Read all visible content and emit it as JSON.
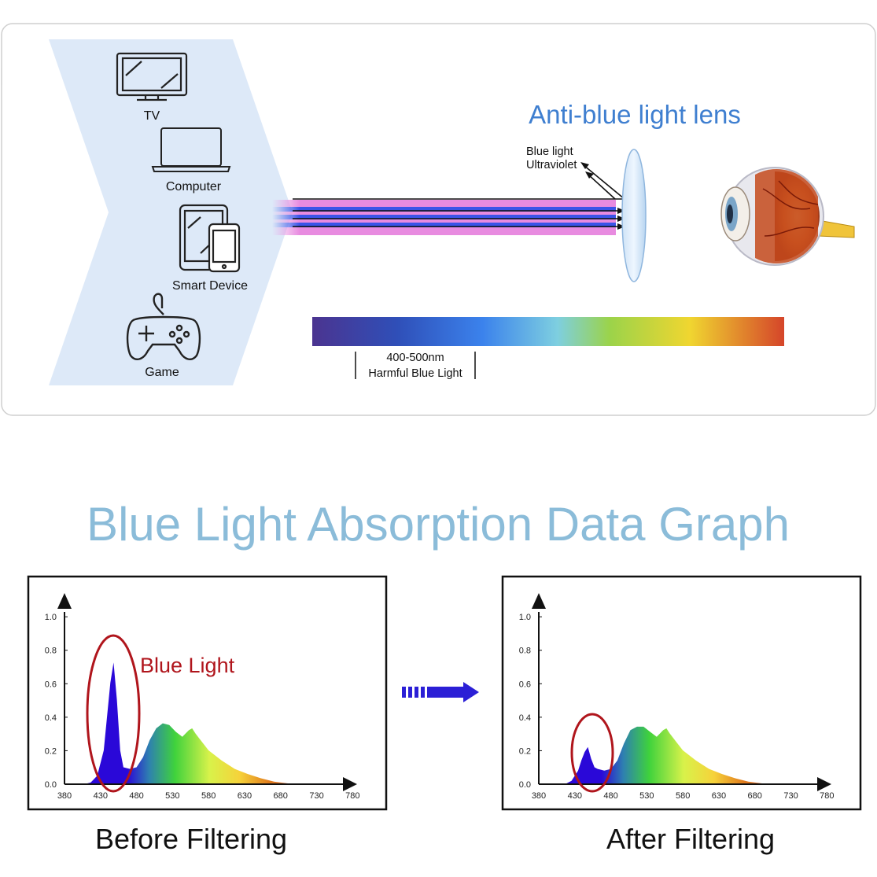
{
  "diagram": {
    "devices": [
      {
        "label": "TV",
        "icon": "tv-icon"
      },
      {
        "label": "Computer",
        "icon": "laptop-icon"
      },
      {
        "label": "Smart Device",
        "icon": "tablet-phone-icon"
      },
      {
        "label": "Game",
        "icon": "gamepad-icon"
      }
    ],
    "lens_title": "Anti-blue light lens",
    "reflected_labels": [
      "Blue light",
      "Ultraviolet"
    ],
    "spectrum_range": "400-500nm",
    "spectrum_label": "Harmful Blue Light",
    "colors": {
      "accent_blue": "#3f7fd0",
      "panel_fill": "#dde9f8",
      "title_blue": "#8bbcd9",
      "marker_red": "#b0151c",
      "arrow_blue": "#2b1fd6"
    }
  },
  "graph_section": {
    "title": "Blue Light Absorption Data Graph",
    "transition_icon": "dashed-right-arrow-icon"
  },
  "chart_data": [
    {
      "type": "area",
      "caption": "Before Filtering",
      "annotation": "Blue Light",
      "x_ticks": [
        380,
        430,
        480,
        530,
        580,
        630,
        680,
        730,
        780
      ],
      "y_ticks": [
        "0.0",
        "0.2",
        "0.4",
        "0.6",
        "0.8",
        "1.0"
      ],
      "xlim": [
        380,
        780
      ],
      "ylim": [
        0,
        1
      ],
      "x": [
        410,
        420,
        430,
        440,
        445,
        450,
        455,
        460,
        465,
        470,
        480,
        490,
        500,
        510,
        520,
        530,
        540,
        550,
        560,
        570,
        575,
        580,
        590,
        600,
        620,
        640,
        660,
        680,
        700,
        720,
        730
      ],
      "y": [
        0.0,
        0.01,
        0.05,
        0.2,
        0.4,
        0.6,
        0.72,
        0.5,
        0.2,
        0.1,
        0.09,
        0.1,
        0.16,
        0.26,
        0.33,
        0.36,
        0.35,
        0.31,
        0.28,
        0.32,
        0.33,
        0.3,
        0.25,
        0.2,
        0.14,
        0.09,
        0.06,
        0.035,
        0.015,
        0.005,
        0.0
      ]
    },
    {
      "type": "area",
      "caption": "After Filtering",
      "annotation": "",
      "x_ticks": [
        380,
        430,
        480,
        530,
        580,
        630,
        680,
        730,
        780
      ],
      "y_ticks": [
        "0.0",
        "0.2",
        "0.4",
        "0.6",
        "0.8",
        "1.0"
      ],
      "xlim": [
        380,
        780
      ],
      "ylim": [
        0,
        1
      ],
      "x": [
        420,
        430,
        440,
        445,
        450,
        455,
        460,
        465,
        470,
        480,
        490,
        500,
        510,
        520,
        530,
        540,
        550,
        560,
        570,
        575,
        580,
        590,
        600,
        620,
        640,
        660,
        680,
        700,
        720,
        730
      ],
      "y": [
        0.0,
        0.02,
        0.08,
        0.14,
        0.19,
        0.22,
        0.15,
        0.1,
        0.09,
        0.08,
        0.09,
        0.14,
        0.24,
        0.32,
        0.34,
        0.34,
        0.31,
        0.28,
        0.32,
        0.33,
        0.3,
        0.25,
        0.2,
        0.14,
        0.09,
        0.06,
        0.035,
        0.015,
        0.005,
        0.0
      ]
    }
  ]
}
